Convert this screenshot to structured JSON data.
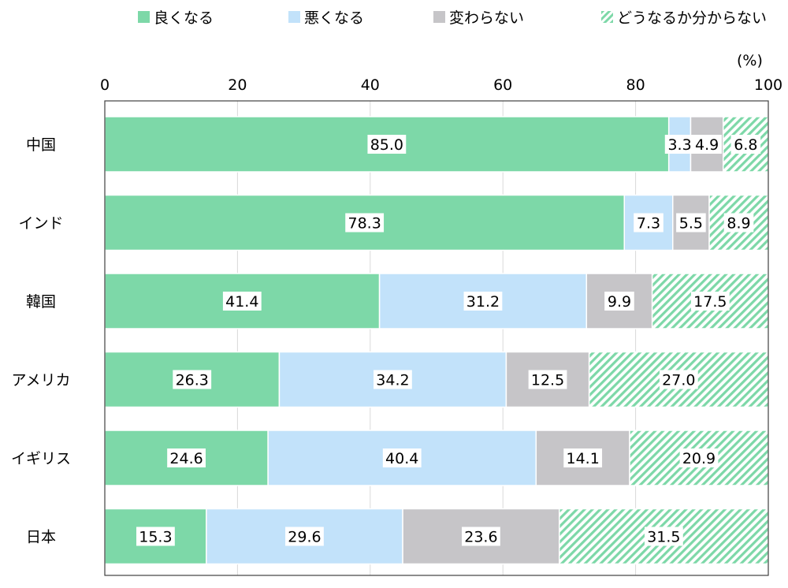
{
  "chart_data": {
    "type": "bar",
    "orientation": "horizontal",
    "stacked": true,
    "unit": "(%)",
    "xlim": [
      0,
      100
    ],
    "xticks": [
      "0",
      "20",
      "40",
      "60",
      "80",
      "100"
    ],
    "categories": [
      "中国",
      "インド",
      "韓国",
      "アメリカ",
      "イギリス",
      "日本"
    ],
    "series": [
      {
        "name": "良くなる",
        "color": "#7dd8a8",
        "pattern": "solid",
        "values": [
          85.0,
          78.3,
          41.4,
          26.3,
          24.6,
          15.3
        ],
        "labels": [
          "85.0",
          "78.3",
          "41.4",
          "26.3",
          "24.6",
          "15.3"
        ]
      },
      {
        "name": "悪くなる",
        "color": "#c2e2fa",
        "pattern": "solid",
        "values": [
          3.3,
          7.3,
          31.2,
          34.2,
          40.4,
          29.6
        ],
        "labels": [
          "3.3",
          "7.3",
          "31.2",
          "34.2",
          "40.4",
          "29.6"
        ]
      },
      {
        "name": "変わらない",
        "color": "#c6c5c8",
        "pattern": "solid",
        "values": [
          4.9,
          5.5,
          9.9,
          12.5,
          14.1,
          23.6
        ],
        "labels": [
          "4.9",
          "5.5",
          "9.9",
          "12.5",
          "14.1",
          "23.6"
        ]
      },
      {
        "name": "どうなるか分からない",
        "color": "#7dd8a8",
        "pattern": "hatched",
        "values": [
          6.8,
          8.9,
          17.5,
          27.0,
          20.9,
          31.5
        ],
        "labels": [
          "6.8",
          "8.9",
          "17.5",
          "27.0",
          "20.9",
          "31.5"
        ]
      }
    ],
    "legend_position": "top",
    "grid": true
  }
}
